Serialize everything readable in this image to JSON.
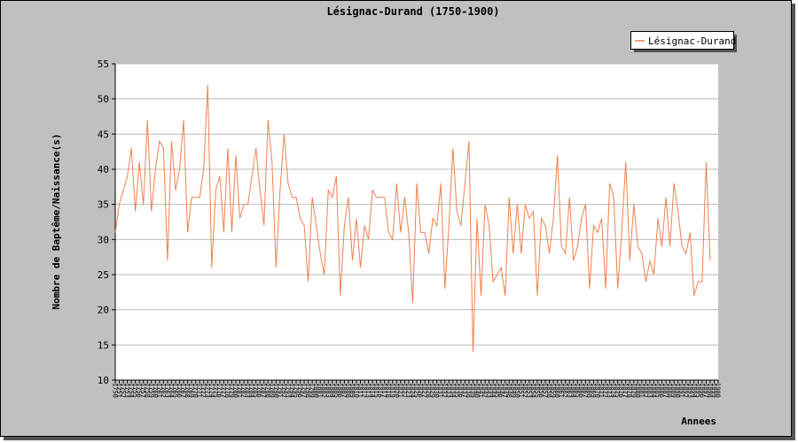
{
  "chart_data": {
    "type": "line",
    "title": "Lésignac-Durand (1750-1900)",
    "ylabel": "Nombre de Baptême/Naissance(s)",
    "xlabel": "Annees",
    "legend": "top-right",
    "grid": true,
    "ylim": [
      10,
      55
    ],
    "yticks": [
      10,
      15,
      20,
      25,
      30,
      35,
      40,
      45,
      50,
      55
    ],
    "xlim": [
      1750,
      1900
    ],
    "xticks": [
      1750,
      1751,
      1752,
      1753,
      1754,
      1755,
      1756,
      1757,
      1758,
      1759,
      1760,
      1761,
      1762,
      1763,
      1764,
      1765,
      1766,
      1767,
      1768,
      1769,
      1770,
      1771,
      1772,
      1773,
      1774,
      1775,
      1776,
      1777,
      1778,
      1779,
      1780,
      1781,
      1782,
      1783,
      1784,
      1785,
      1786,
      1787,
      1788,
      1789,
      1790,
      1791,
      1792,
      1793,
      1794,
      1795,
      1796,
      1797,
      1798,
      1799,
      1800,
      1801,
      1802,
      1803,
      1804,
      1805,
      1806,
      1807,
      1808,
      1809,
      1810,
      1811,
      1812,
      1813,
      1814,
      1815,
      1816,
      1817,
      1818,
      1819,
      1820,
      1821,
      1822,
      1823,
      1824,
      1825,
      1826,
      1827,
      1828,
      1829,
      1830,
      1831,
      1832,
      1833,
      1834,
      1835,
      1836,
      1837,
      1838,
      1839,
      1840,
      1841,
      1842,
      1843,
      1844,
      1845,
      1846,
      1847,
      1848,
      1849,
      1850,
      1851,
      1852,
      1853,
      1854,
      1855,
      1856,
      1857,
      1858,
      1859,
      1860,
      1861,
      1862,
      1863,
      1864,
      1865,
      1866,
      1867,
      1868,
      1869,
      1870,
      1871,
      1872,
      1873,
      1874,
      1875,
      1876,
      1877,
      1878,
      1879,
      1880,
      1881,
      1882,
      1883,
      1884,
      1885,
      1886,
      1887,
      1888,
      1889,
      1890,
      1891,
      1892,
      1893,
      1894,
      1895,
      1896,
      1897,
      1898,
      1899,
      1900
    ],
    "x": [
      1750,
      1751,
      1752,
      1753,
      1754,
      1755,
      1756,
      1757,
      1758,
      1759,
      1760,
      1761,
      1762,
      1763,
      1764,
      1765,
      1766,
      1767,
      1768,
      1769,
      1770,
      1771,
      1772,
      1773,
      1774,
      1775,
      1776,
      1777,
      1778,
      1779,
      1780,
      1781,
      1782,
      1783,
      1784,
      1785,
      1786,
      1787,
      1788,
      1789,
      1790,
      1791,
      1792,
      1793,
      1794,
      1795,
      1796,
      1797,
      1798,
      1799,
      1800,
      1801,
      1802,
      1803,
      1804,
      1805,
      1806,
      1807,
      1808,
      1809,
      1810,
      1811,
      1812,
      1813,
      1814,
      1815,
      1816,
      1817,
      1818,
      1819,
      1820,
      1821,
      1822,
      1823,
      1824,
      1825,
      1826,
      1827,
      1828,
      1829,
      1830,
      1831,
      1832,
      1833,
      1834,
      1835,
      1836,
      1837,
      1838,
      1839,
      1840,
      1841,
      1842,
      1843,
      1844,
      1845,
      1846,
      1847,
      1848,
      1849,
      1850,
      1851,
      1852,
      1853,
      1854,
      1855,
      1856,
      1857,
      1858,
      1859,
      1860,
      1861,
      1862,
      1863,
      1864,
      1865,
      1866,
      1867,
      1868,
      1869,
      1870,
      1871,
      1872,
      1873,
      1874,
      1875,
      1876,
      1877,
      1878,
      1879,
      1880,
      1881,
      1882,
      1883,
      1884,
      1885,
      1886,
      1887,
      1888,
      1889,
      1890,
      1891,
      1892,
      1893,
      1894,
      1895,
      1896,
      1897,
      1898
    ],
    "series": [
      {
        "name": "Lésignac-Durand",
        "color": "#f08050",
        "values": [
          31,
          35,
          37,
          39,
          43,
          34,
          41,
          35,
          47,
          34,
          40,
          44,
          43,
          27,
          44,
          37,
          40,
          47,
          31,
          36,
          36,
          36,
          40,
          52,
          26,
          37,
          39,
          31,
          43,
          31,
          42,
          33,
          35,
          35,
          39,
          43,
          37,
          32,
          47,
          41,
          26,
          37,
          45,
          38,
          36,
          36,
          33,
          32,
          24,
          36,
          32,
          28,
          25,
          37,
          36,
          39,
          22,
          32,
          36,
          27,
          33,
          26,
          32,
          30,
          37,
          36,
          36,
          36,
          31,
          30,
          38,
          31,
          36,
          31,
          21,
          38,
          31,
          31,
          28,
          33,
          32,
          38,
          23,
          32,
          43,
          34,
          32,
          38,
          44,
          14,
          33,
          22,
          35,
          32,
          24,
          25,
          26,
          22,
          36,
          28,
          35,
          28,
          35,
          33,
          34,
          22,
          33,
          32,
          28,
          33,
          42,
          29,
          28,
          36,
          27,
          29,
          33,
          35,
          23,
          32,
          31,
          33,
          23,
          38,
          36,
          23,
          31,
          41,
          27,
          35,
          29,
          28,
          24,
          27,
          25,
          33,
          29,
          36,
          29,
          38,
          34,
          29,
          28,
          31,
          22,
          24,
          24,
          41,
          27
        ]
      }
    ]
  }
}
